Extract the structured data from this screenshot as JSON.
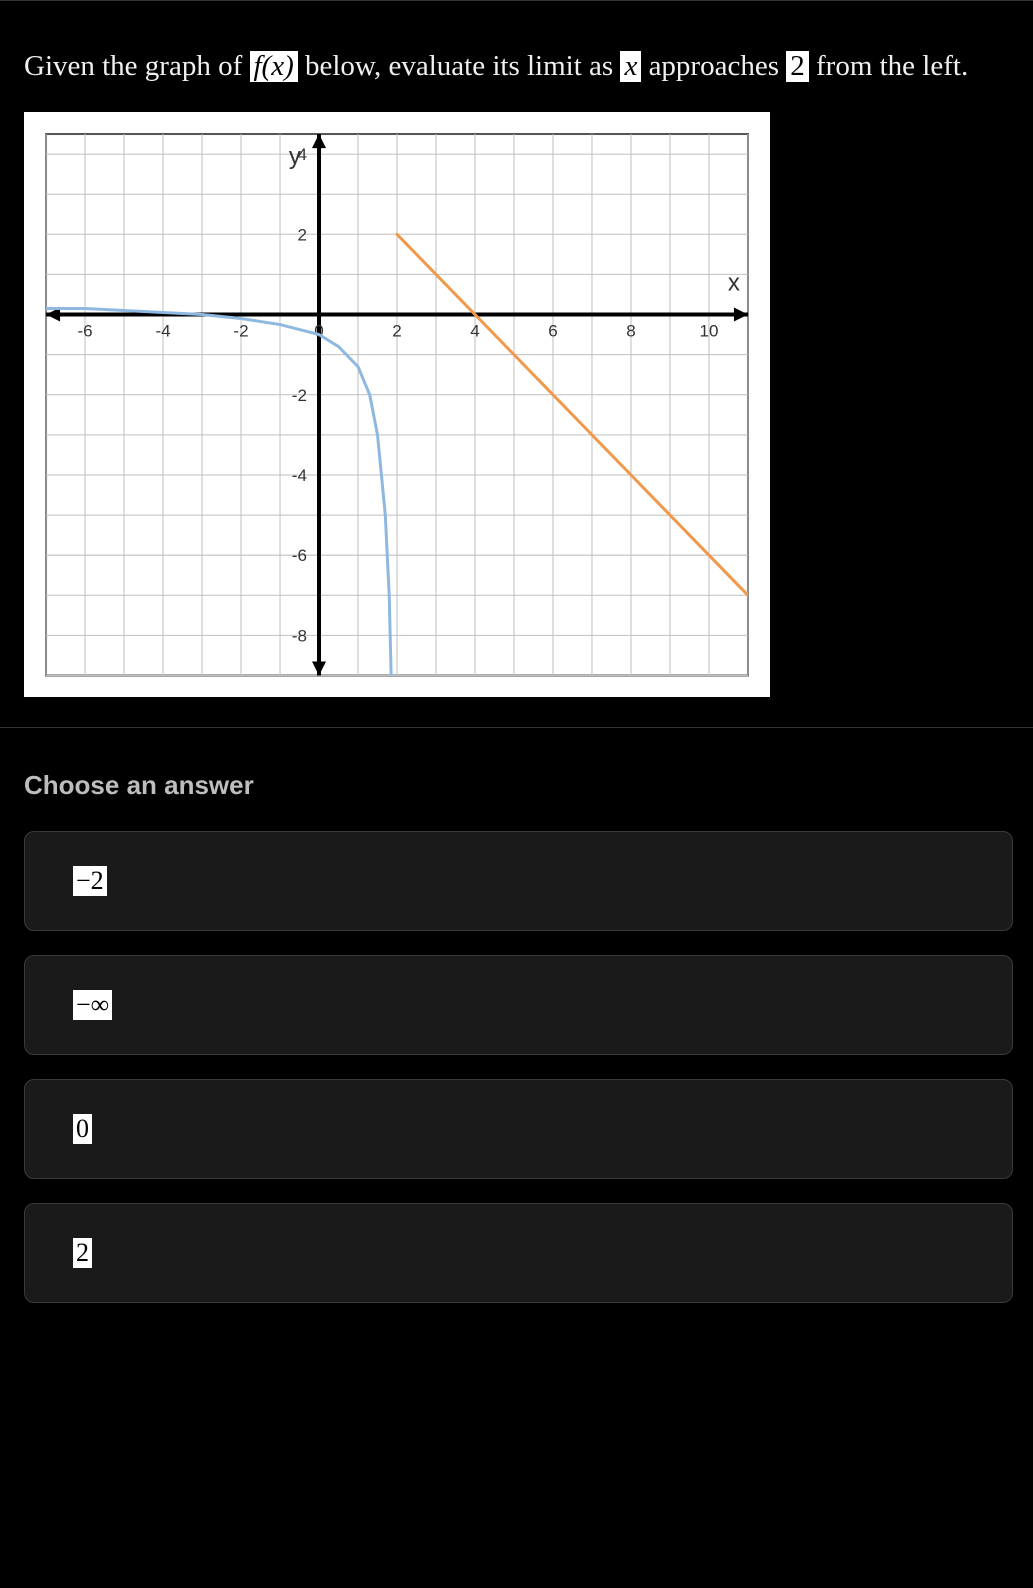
{
  "question": {
    "prefix": "Given the graph of ",
    "fx": "f(x)",
    "mid1": " below, evaluate its limit as ",
    "var": "x",
    "mid2": " approaches ",
    "val": "2",
    "suffix": " from the left."
  },
  "graph": {
    "background_color": "#ffffff",
    "border_color": "#555555",
    "grid_color": "#bfbfbf",
    "axis_color": "#000000",
    "axis_width": 4,
    "grid_width": 1,
    "x_label": "x",
    "y_label": "y",
    "x_ticks": [
      -6,
      -4,
      -2,
      0,
      2,
      4,
      6,
      8,
      10
    ],
    "y_ticks": [
      -8,
      -6,
      -4,
      -2,
      2,
      4
    ],
    "xlim": [
      -7,
      11
    ],
    "ylim": [
      -9,
      4.5
    ],
    "tick_fontsize": 17,
    "label_fontsize": 24,
    "label_color": "#333333",
    "curves": [
      {
        "type": "curve",
        "color": "#8fb8e0",
        "width": 3,
        "points": [
          [
            -7,
            0.15
          ],
          [
            -6,
            0.15
          ],
          [
            -5,
            0.1
          ],
          [
            -4,
            0.05
          ],
          [
            -3,
            0.0
          ],
          [
            -2,
            -0.1
          ],
          [
            -1,
            -0.25
          ],
          [
            0,
            -0.5
          ],
          [
            0.5,
            -0.8
          ],
          [
            1.0,
            -1.3
          ],
          [
            1.3,
            -2.0
          ],
          [
            1.5,
            -3.0
          ],
          [
            1.7,
            -5.0
          ],
          [
            1.8,
            -7.0
          ],
          [
            1.85,
            -9.0
          ]
        ]
      },
      {
        "type": "line",
        "color": "#f0994a",
        "width": 3,
        "points": [
          [
            2,
            2
          ],
          [
            11,
            -7
          ]
        ]
      }
    ]
  },
  "answers": {
    "heading": "Choose an answer",
    "options": [
      {
        "label": "−2"
      },
      {
        "label": "−∞"
      },
      {
        "label": "0"
      },
      {
        "label": "2"
      }
    ]
  }
}
